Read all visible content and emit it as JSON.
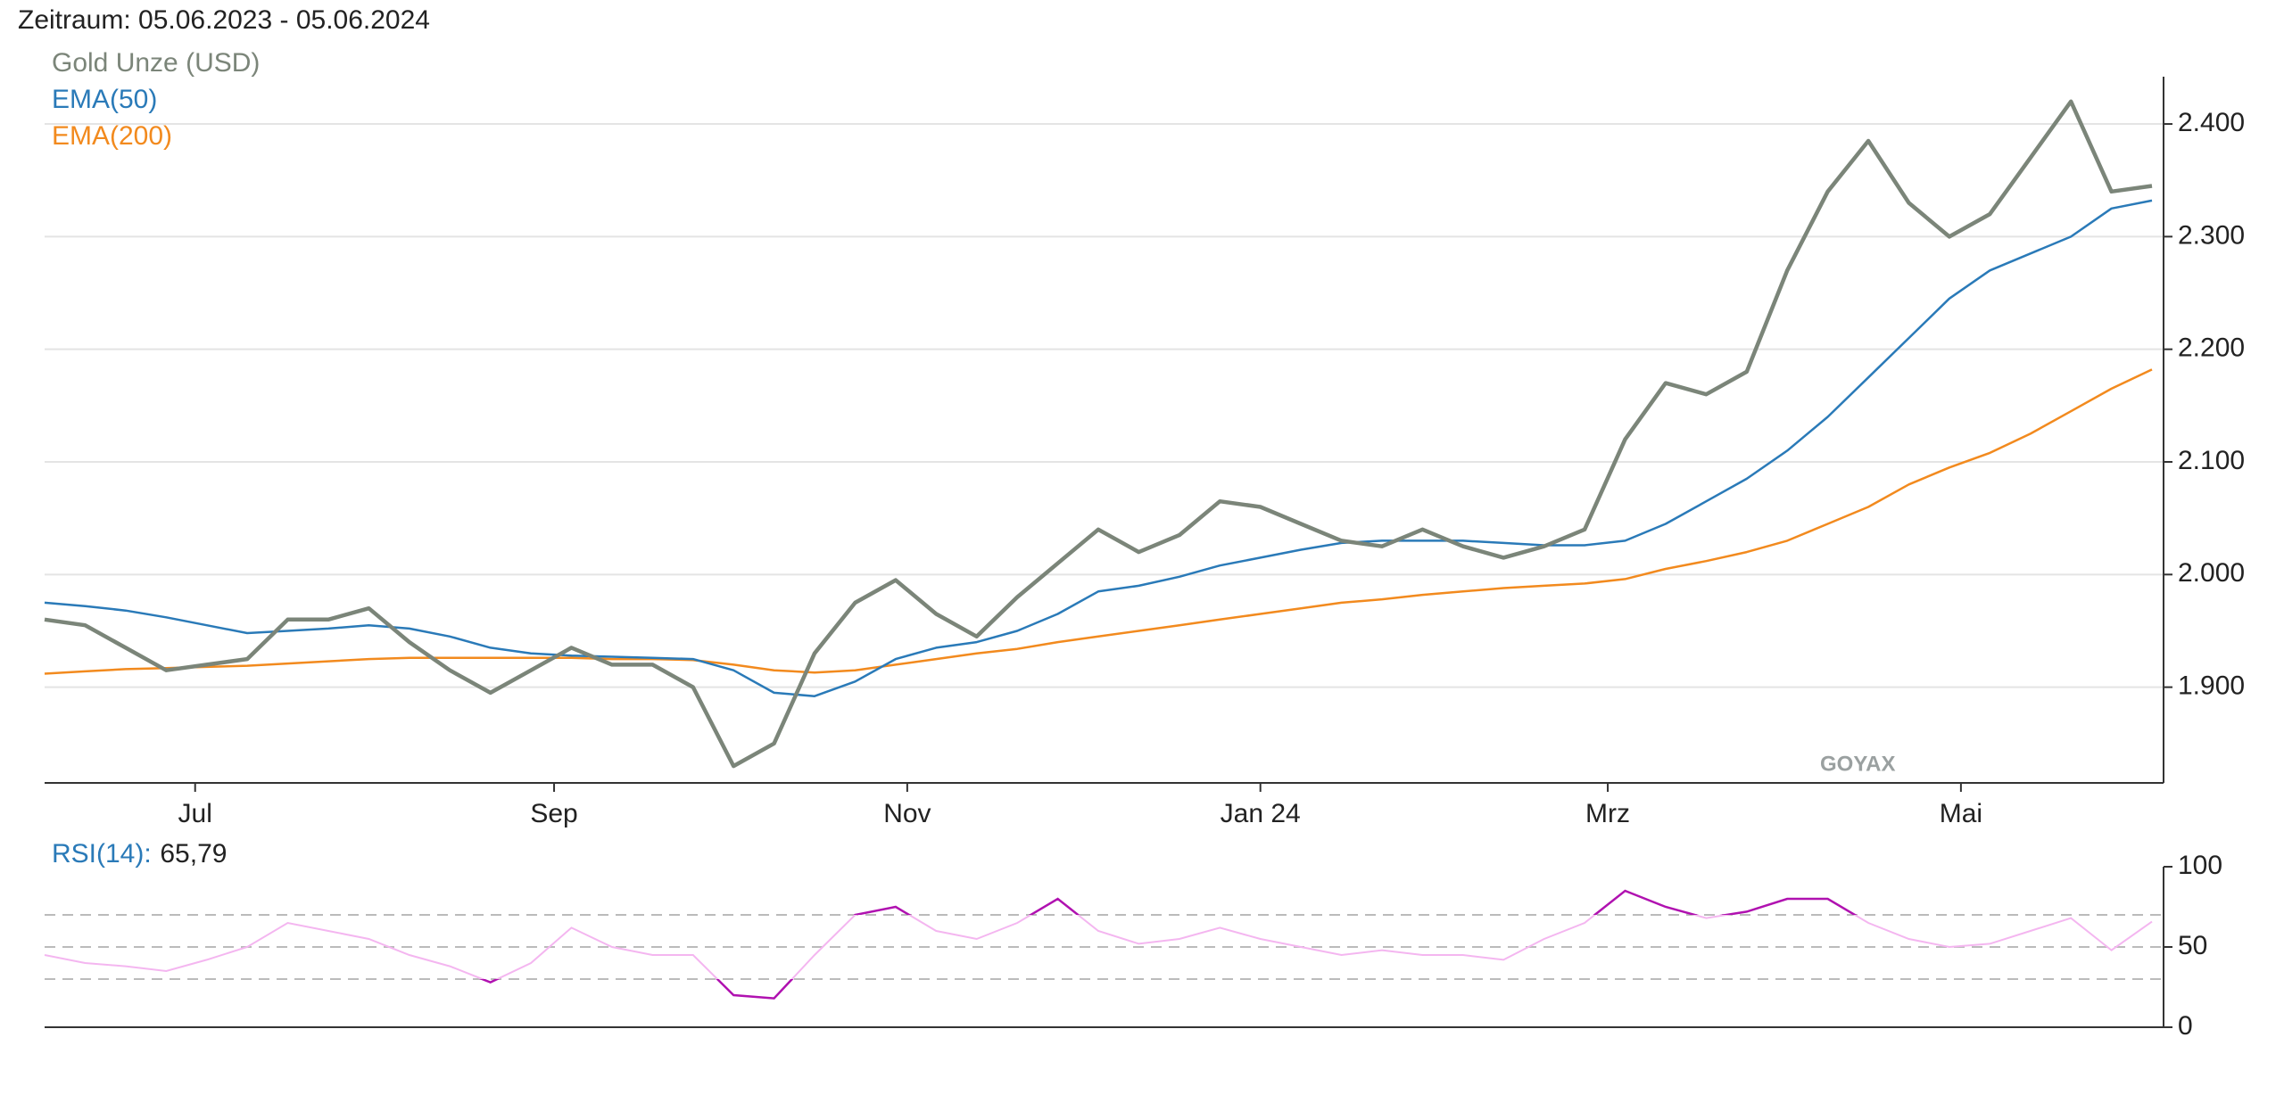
{
  "chart_data": {
    "type": "line",
    "title": "Zeitraum: 05.06.2023 - 05.06.2024",
    "watermark": "GOYAX",
    "x": [
      "2023-06-05",
      "2023-06-12",
      "2023-06-19",
      "2023-06-26",
      "2023-07-03",
      "2023-07-10",
      "2023-07-17",
      "2023-07-24",
      "2023-07-31",
      "2023-08-07",
      "2023-08-14",
      "2023-08-21",
      "2023-08-28",
      "2023-09-04",
      "2023-09-11",
      "2023-09-18",
      "2023-09-25",
      "2023-10-02",
      "2023-10-09",
      "2023-10-16",
      "2023-10-23",
      "2023-10-30",
      "2023-11-06",
      "2023-11-13",
      "2023-11-20",
      "2023-11-27",
      "2023-12-04",
      "2023-12-11",
      "2023-12-18",
      "2023-12-25",
      "2024-01-01",
      "2024-01-08",
      "2024-01-15",
      "2024-01-22",
      "2024-01-29",
      "2024-02-05",
      "2024-02-12",
      "2024-02-19",
      "2024-02-26",
      "2024-03-04",
      "2024-03-11",
      "2024-03-18",
      "2024-03-25",
      "2024-04-01",
      "2024-04-08",
      "2024-04-15",
      "2024-04-22",
      "2024-04-29",
      "2024-05-06",
      "2024-05-13",
      "2024-05-20",
      "2024-05-27",
      "2024-06-03"
    ],
    "xlim": [
      "2023-06-05",
      "2024-06-05"
    ],
    "xticks": [
      {
        "value": "2023-07-01",
        "label": "Jul"
      },
      {
        "value": "2023-09-01",
        "label": "Sep"
      },
      {
        "value": "2023-11-01",
        "label": "Nov"
      },
      {
        "value": "2024-01-01",
        "label": "Jan 24"
      },
      {
        "value": "2024-03-01",
        "label": "Mrz"
      },
      {
        "value": "2024-05-01",
        "label": "Mai"
      }
    ],
    "ylim": [
      1815,
      2442
    ],
    "yticks": [
      {
        "value": 1900,
        "label": "1.900"
      },
      {
        "value": 2000,
        "label": "2.000"
      },
      {
        "value": 2100,
        "label": "2.100"
      },
      {
        "value": 2200,
        "label": "2.200"
      },
      {
        "value": 2300,
        "label": "2.300"
      },
      {
        "value": 2400,
        "label": "2.400"
      }
    ],
    "grid": true,
    "legend": "top-left",
    "series": [
      {
        "name": "Gold Unze (USD)",
        "color": "#7b8579",
        "values": [
          1960,
          1955,
          1935,
          1915,
          1920,
          1925,
          1960,
          1960,
          1970,
          1940,
          1915,
          1895,
          1915,
          1935,
          1920,
          1920,
          1900,
          1830,
          1850,
          1930,
          1975,
          1995,
          1965,
          1945,
          1980,
          2010,
          2040,
          2020,
          2035,
          2065,
          2060,
          2045,
          2030,
          2025,
          2040,
          2025,
          2015,
          2025,
          2040,
          2120,
          2170,
          2160,
          2180,
          2270,
          2340,
          2385,
          2330,
          2300,
          2320,
          2370,
          2420,
          2340,
          2345
        ]
      },
      {
        "name": "EMA(50)",
        "color": "#2a7ab8",
        "values": [
          1975,
          1972,
          1968,
          1962,
          1955,
          1948,
          1950,
          1952,
          1955,
          1952,
          1945,
          1935,
          1930,
          1928,
          1927,
          1926,
          1925,
          1915,
          1895,
          1892,
          1905,
          1925,
          1935,
          1940,
          1950,
          1965,
          1985,
          1990,
          1998,
          2008,
          2015,
          2022,
          2028,
          2030,
          2030,
          2030,
          2028,
          2026,
          2026,
          2030,
          2045,
          2065,
          2085,
          2110,
          2140,
          2175,
          2210,
          2245,
          2270,
          2285,
          2300,
          2325,
          2332
        ]
      },
      {
        "name": "EMA(200)",
        "color": "#f28a1e",
        "values": [
          1912,
          1914,
          1916,
          1917,
          1918,
          1919,
          1921,
          1923,
          1925,
          1926,
          1926,
          1926,
          1926,
          1926,
          1925,
          1925,
          1924,
          1920,
          1915,
          1913,
          1915,
          1920,
          1925,
          1930,
          1934,
          1940,
          1945,
          1950,
          1955,
          1960,
          1965,
          1970,
          1975,
          1978,
          1982,
          1985,
          1988,
          1990,
          1992,
          1996,
          2005,
          2012,
          2020,
          2030,
          2045,
          2060,
          2080,
          2095,
          2108,
          2125,
          2145,
          2165,
          2182
        ]
      }
    ],
    "rsi": {
      "name": "RSI(14)",
      "color": "#f4b6f0",
      "extreme_color": "#b012b0",
      "current": {
        "value": 65.79,
        "label": "65,79"
      },
      "values": [
        45,
        40,
        38,
        35,
        42,
        50,
        65,
        60,
        55,
        45,
        38,
        28,
        40,
        62,
        50,
        45,
        45,
        20,
        18,
        45,
        70,
        75,
        60,
        55,
        65,
        80,
        60,
        52,
        55,
        62,
        55,
        50,
        45,
        48,
        45,
        45,
        42,
        55,
        65,
        85,
        75,
        68,
        72,
        80,
        80,
        65,
        55,
        50,
        52,
        60,
        68,
        48,
        65.79
      ],
      "ylim": [
        0,
        100
      ],
      "yticks": [
        0,
        50,
        100
      ],
      "levels": [
        30,
        50,
        70
      ]
    }
  }
}
